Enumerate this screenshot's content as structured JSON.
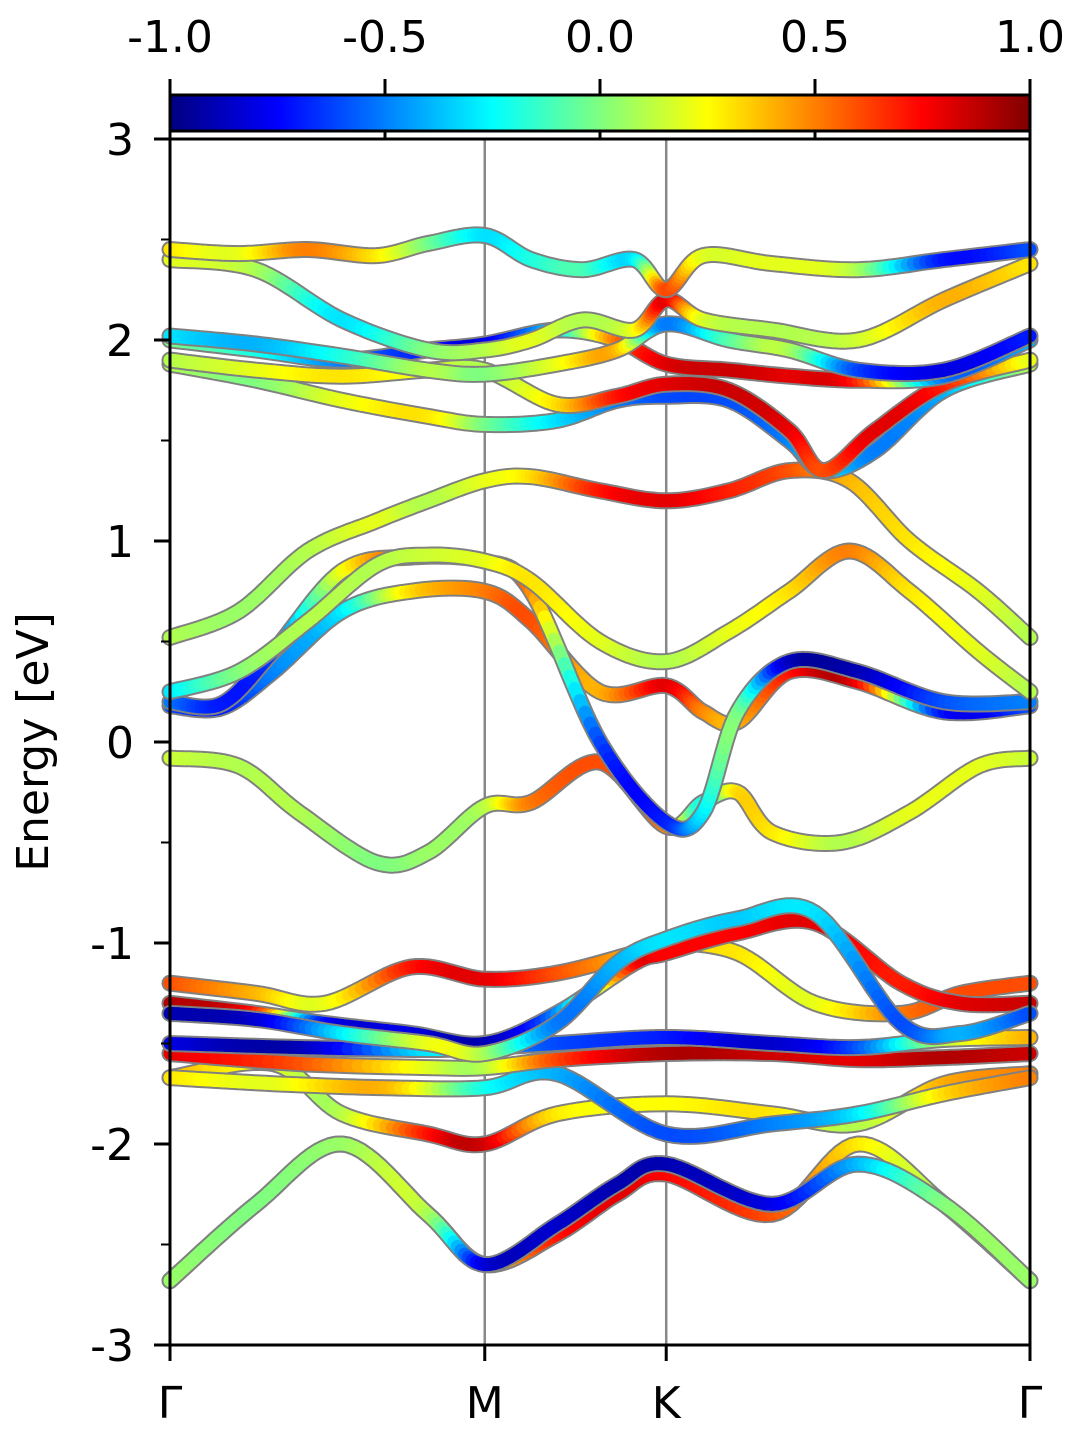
{
  "chart_data": {
    "type": "line",
    "ylabel": "Energy [eV]",
    "ylim": [
      -3,
      3
    ],
    "yticks": [
      3,
      2,
      1,
      0,
      -1,
      -2,
      -3
    ],
    "ytick_labels": [
      "3",
      "2",
      "1",
      "0",
      "-1",
      "-2",
      "-3"
    ],
    "xlim": [
      0,
      1
    ],
    "high_symmetry_points": [
      {
        "label": "Γ",
        "x": 0.0
      },
      {
        "label": "M",
        "x": 0.366
      },
      {
        "label": "K",
        "x": 0.577
      },
      {
        "label": "Γ",
        "x": 1.0
      }
    ],
    "colorbar": {
      "colormap": "jet",
      "range": [
        -1.0,
        1.0
      ],
      "ticks": [
        -1.0,
        -0.5,
        0.0,
        0.5,
        1.0
      ],
      "tick_labels": [
        "-1.0",
        "-0.5",
        "0.0",
        "0.5",
        "1.0"
      ],
      "placement": "top"
    },
    "colormap_stops": [
      "#00007f",
      "#0000ff",
      "#007fff",
      "#00ffff",
      "#7fff7f",
      "#ffff00",
      "#ff7f00",
      "#ff0000",
      "#7f0000"
    ],
    "series": [
      {
        "x": [
          0,
          0.1,
          0.2,
          0.3,
          0.366,
          0.45,
          0.52,
          0.577,
          0.7,
          0.8,
          0.9,
          1.0
        ],
        "values": [
          -2.68,
          -2.3,
          -2.0,
          -2.35,
          -2.6,
          -2.45,
          -2.25,
          -2.15,
          -2.35,
          -2.0,
          -2.3,
          -2.68
        ],
        "colors": [
          0.05,
          0.0,
          0.05,
          0.1,
          0.3,
          0.7,
          0.8,
          0.75,
          0.6,
          0.3,
          0.1,
          0.05
        ]
      },
      {
        "x": [
          0,
          0.1,
          0.2,
          0.3,
          0.366,
          0.45,
          0.52,
          0.577,
          0.7,
          0.8,
          0.9,
          1.0
        ],
        "values": [
          -2.68,
          -2.3,
          -2.0,
          -2.35,
          -2.6,
          -2.4,
          -2.2,
          -2.1,
          -2.3,
          -2.1,
          -2.3,
          -2.68
        ],
        "colors": [
          0.05,
          0.0,
          0.05,
          0.1,
          -0.8,
          -0.85,
          -0.9,
          -0.9,
          -0.8,
          -0.4,
          0.0,
          0.05
        ]
      },
      {
        "x": [
          0,
          0.12,
          0.2,
          0.3,
          0.366,
          0.45,
          0.577,
          0.7,
          0.8,
          0.9,
          1.0
        ],
        "values": [
          -1.67,
          -1.6,
          -1.85,
          -1.95,
          -2.0,
          -1.85,
          -1.8,
          -1.85,
          -1.9,
          -1.7,
          -1.65
        ],
        "colors": [
          0.4,
          0.2,
          0.1,
          0.7,
          0.85,
          0.3,
          0.25,
          0.3,
          0.1,
          0.4,
          0.5
        ]
      },
      {
        "x": [
          0,
          0.12,
          0.25,
          0.366,
          0.45,
          0.577,
          0.7,
          0.8,
          0.9,
          1.0
        ],
        "values": [
          -1.67,
          -1.7,
          -1.72,
          -1.72,
          -1.65,
          -1.95,
          -1.9,
          -1.85,
          -1.75,
          -1.67
        ],
        "colors": [
          0.3,
          0.2,
          0.4,
          -0.2,
          -0.4,
          -0.6,
          -0.5,
          -0.3,
          0.3,
          0.5
        ]
      },
      {
        "x": [
          0,
          0.15,
          0.3,
          0.366,
          0.45,
          0.577,
          0.7,
          0.8,
          0.9,
          1.0
        ],
        "values": [
          -1.55,
          -1.6,
          -1.62,
          -1.62,
          -1.58,
          -1.55,
          -1.55,
          -1.58,
          -1.57,
          -1.55
        ],
        "colors": [
          0.8,
          0.6,
          0.2,
          0.1,
          0.6,
          0.9,
          0.85,
          0.8,
          0.9,
          0.85
        ]
      },
      {
        "x": [
          0,
          0.15,
          0.3,
          0.366,
          0.45,
          0.577,
          0.7,
          0.8,
          0.9,
          1.0
        ],
        "values": [
          -1.5,
          -1.52,
          -1.53,
          -1.52,
          -1.5,
          -1.47,
          -1.5,
          -1.52,
          -1.48,
          -1.47
        ],
        "colors": [
          -0.8,
          -0.9,
          -0.3,
          -0.4,
          -0.6,
          -0.7,
          -0.85,
          -0.6,
          0.1,
          0.4
        ]
      },
      {
        "x": [
          0,
          0.1,
          0.18,
          0.28,
          0.366,
          0.45,
          0.54,
          0.577,
          0.66,
          0.75,
          0.85,
          0.92,
          1.0
        ],
        "values": [
          -1.2,
          -1.25,
          -1.3,
          -1.12,
          -1.18,
          -1.15,
          -1.05,
          -1.0,
          -1.05,
          -1.3,
          -1.35,
          -1.25,
          -1.2
        ],
        "colors": [
          0.6,
          0.4,
          0.2,
          0.7,
          0.8,
          0.6,
          0.4,
          0.3,
          0.3,
          0.2,
          0.5,
          0.6,
          0.6
        ]
      },
      {
        "x": [
          0,
          0.1,
          0.18,
          0.28,
          0.366,
          0.45,
          0.54,
          0.577,
          0.66,
          0.75,
          0.85,
          0.92,
          1.0
        ],
        "values": [
          -1.3,
          -1.35,
          -1.4,
          -1.45,
          -1.5,
          -1.35,
          -1.1,
          -1.05,
          -0.95,
          -0.9,
          -1.2,
          -1.3,
          -1.3
        ],
        "colors": [
          0.9,
          0.7,
          -0.7,
          -0.8,
          -0.9,
          -0.5,
          0.7,
          0.75,
          0.75,
          0.8,
          0.7,
          0.8,
          0.85
        ]
      },
      {
        "x": [
          0,
          0.1,
          0.2,
          0.3,
          0.366,
          0.45,
          0.52,
          0.577,
          0.66,
          0.75,
          0.85,
          0.92,
          1.0
        ],
        "values": [
          -1.35,
          -1.38,
          -1.45,
          -1.5,
          -1.55,
          -1.4,
          -1.1,
          -0.98,
          -0.88,
          -0.85,
          -1.4,
          -1.45,
          -1.35
        ],
        "colors": [
          -0.9,
          -0.85,
          -0.3,
          0.2,
          0.1,
          -0.5,
          -0.4,
          -0.3,
          -0.35,
          -0.3,
          -0.6,
          -0.4,
          -0.6
        ]
      },
      {
        "x": [
          0,
          0.08,
          0.15,
          0.24,
          0.3,
          0.366,
          0.42,
          0.5,
          0.577,
          0.62,
          0.66,
          0.7,
          0.78,
          0.86,
          0.94,
          1.0
        ],
        "values": [
          -0.08,
          -0.12,
          -0.35,
          -0.6,
          -0.55,
          -0.32,
          -0.3,
          -0.1,
          -0.42,
          -0.3,
          -0.25,
          -0.45,
          -0.5,
          -0.35,
          -0.12,
          -0.08
        ],
        "colors": [
          0.15,
          0.1,
          0.1,
          0.0,
          0.05,
          0.1,
          0.5,
          0.6,
          0.5,
          -0.2,
          0.3,
          0.3,
          0.1,
          0.2,
          0.2,
          0.15
        ]
      },
      {
        "x": [
          0,
          0.06,
          0.12,
          0.2,
          0.28,
          0.366,
          0.42,
          0.5,
          0.577,
          0.62,
          0.66,
          0.72,
          0.8,
          0.9,
          1.0
        ],
        "values": [
          0.18,
          0.17,
          0.35,
          0.65,
          0.75,
          0.75,
          0.6,
          0.25,
          0.28,
          0.15,
          0.1,
          0.35,
          0.3,
          0.15,
          0.18
        ],
        "colors": [
          -0.6,
          -0.7,
          -0.5,
          -0.3,
          0.3,
          0.5,
          0.6,
          0.4,
          0.8,
          0.5,
          0.4,
          0.7,
          0.8,
          -0.7,
          -0.6
        ]
      },
      {
        "x": [
          0,
          0.06,
          0.12,
          0.2,
          0.28,
          0.366,
          0.42,
          0.5,
          0.577,
          0.62,
          0.66,
          0.72,
          0.8,
          0.9,
          1.0
        ],
        "values": [
          0.2,
          0.19,
          0.45,
          0.85,
          0.92,
          0.9,
          0.75,
          0.0,
          -0.4,
          -0.35,
          0.15,
          0.4,
          0.35,
          0.2,
          0.2
        ],
        "colors": [
          -0.5,
          -0.7,
          -0.6,
          0.2,
          0.6,
          0.7,
          0.5,
          -0.6,
          -0.7,
          -0.3,
          0.0,
          -0.85,
          -0.9,
          -0.6,
          -0.5
        ]
      },
      {
        "x": [
          0,
          0.08,
          0.16,
          0.24,
          0.3,
          0.366,
          0.42,
          0.5,
          0.577,
          0.65,
          0.72,
          0.79,
          0.86,
          0.94,
          1.0
        ],
        "values": [
          0.25,
          0.35,
          0.6,
          0.88,
          0.93,
          0.9,
          0.8,
          0.5,
          0.4,
          0.55,
          0.75,
          0.95,
          0.75,
          0.45,
          0.25
        ],
        "colors": [
          -0.3,
          0.0,
          0.1,
          0.1,
          0.15,
          0.2,
          0.3,
          0.2,
          0.1,
          0.2,
          0.3,
          0.5,
          0.3,
          0.2,
          0.1
        ]
      },
      {
        "x": [
          0,
          0.08,
          0.16,
          0.24,
          0.3,
          0.366,
          0.42,
          0.5,
          0.577,
          0.65,
          0.72,
          0.79,
          0.86,
          0.94,
          1.0
        ],
        "values": [
          0.52,
          0.65,
          0.95,
          1.1,
          1.2,
          1.3,
          1.32,
          1.25,
          1.2,
          1.25,
          1.35,
          1.3,
          1.0,
          0.75,
          0.52
        ],
        "colors": [
          0.1,
          0.05,
          0.1,
          0.2,
          0.1,
          0.2,
          0.3,
          0.7,
          0.8,
          0.7,
          0.6,
          0.4,
          0.3,
          0.2,
          0.1
        ]
      },
      {
        "x": [
          0,
          0.1,
          0.2,
          0.3,
          0.366,
          0.45,
          0.52,
          0.577,
          0.65,
          0.72,
          0.76,
          0.82,
          0.9,
          1.0
        ],
        "values": [
          1.88,
          1.8,
          1.7,
          1.62,
          1.58,
          1.6,
          1.7,
          1.72,
          1.7,
          1.5,
          1.35,
          1.45,
          1.75,
          1.88
        ],
        "colors": [
          0.1,
          0.0,
          0.2,
          0.3,
          0.0,
          -0.3,
          -0.5,
          -0.6,
          -0.6,
          -0.5,
          -0.3,
          -0.5,
          -0.4,
          0.1
        ]
      },
      {
        "x": [
          0,
          0.1,
          0.2,
          0.3,
          0.366,
          0.45,
          0.52,
          0.577,
          0.65,
          0.72,
          0.76,
          0.82,
          0.9,
          1.0
        ],
        "values": [
          1.9,
          1.85,
          1.82,
          1.85,
          1.85,
          1.68,
          1.72,
          1.78,
          1.75,
          1.55,
          1.35,
          1.55,
          1.78,
          1.9
        ],
        "colors": [
          0.1,
          0.2,
          0.3,
          0.2,
          0.1,
          0.3,
          0.7,
          0.8,
          0.85,
          0.8,
          0.6,
          0.8,
          0.7,
          0.2
        ]
      },
      {
        "x": [
          0,
          0.1,
          0.2,
          0.3,
          0.366,
          0.45,
          0.52,
          0.577,
          0.65,
          0.72,
          0.8,
          0.9,
          1.0
        ],
        "values": [
          2.0,
          1.95,
          1.9,
          1.95,
          1.98,
          2.05,
          2.0,
          1.88,
          1.85,
          1.82,
          1.8,
          1.82,
          2.0
        ],
        "colors": [
          0.0,
          -0.2,
          -0.5,
          -0.7,
          -0.8,
          -0.3,
          0.5,
          0.8,
          0.85,
          0.8,
          0.7,
          -0.5,
          -0.4
        ]
      },
      {
        "x": [
          0,
          0.1,
          0.2,
          0.3,
          0.366,
          0.45,
          0.52,
          0.577,
          0.65,
          0.72,
          0.8,
          0.9,
          1.0
        ],
        "values": [
          2.02,
          1.98,
          1.92,
          1.85,
          1.83,
          1.88,
          1.95,
          2.08,
          2.0,
          1.95,
          1.85,
          1.85,
          2.02
        ],
        "colors": [
          -0.3,
          -0.4,
          -0.2,
          0.1,
          0.0,
          0.2,
          0.4,
          -0.5,
          -0.1,
          0.1,
          -0.6,
          -0.8,
          -0.7
        ]
      },
      {
        "x": [
          0,
          0.1,
          0.2,
          0.3,
          0.366,
          0.42,
          0.48,
          0.54,
          0.577,
          0.62,
          0.7,
          0.8,
          0.9,
          1.0
        ],
        "values": [
          2.4,
          2.35,
          2.1,
          1.95,
          1.95,
          2.0,
          2.1,
          2.05,
          2.2,
          2.1,
          2.05,
          2.0,
          2.2,
          2.38
        ],
        "colors": [
          0.2,
          0.1,
          -0.3,
          0.0,
          0.1,
          0.2,
          0.1,
          0.2,
          0.8,
          0.2,
          0.1,
          0.15,
          0.4,
          0.3
        ]
      },
      {
        "x": [
          0,
          0.08,
          0.16,
          0.24,
          0.3,
          0.366,
          0.42,
          0.48,
          0.54,
          0.577,
          0.62,
          0.7,
          0.8,
          0.9,
          1.0
        ],
        "values": [
          2.45,
          2.43,
          2.45,
          2.42,
          2.48,
          2.52,
          2.4,
          2.35,
          2.4,
          2.25,
          2.42,
          2.38,
          2.35,
          2.4,
          2.45
        ],
        "colors": [
          0.3,
          0.2,
          0.5,
          0.3,
          0.0,
          -0.3,
          -0.2,
          -0.1,
          -0.3,
          0.6,
          0.2,
          0.2,
          0.1,
          -0.7,
          -0.6
        ]
      }
    ]
  }
}
